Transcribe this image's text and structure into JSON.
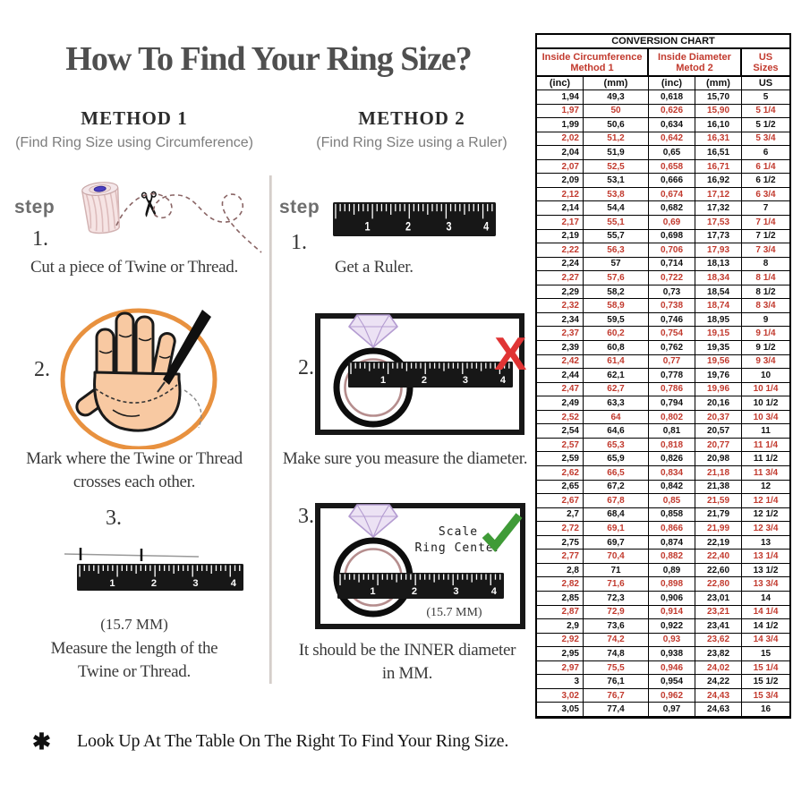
{
  "title": "How To Find Your Ring Size?",
  "footnote": {
    "symbol": "✱",
    "text": "Look Up At The Table On The Right To Find Your Ring Size."
  },
  "rulers": {
    "numbers": [
      "1",
      "2",
      "3",
      "4"
    ]
  },
  "icons": {
    "scissors": "✂"
  },
  "method1": {
    "title": "METHOD 1",
    "subtitle": "(Find Ring Size using Circumference)",
    "step_label": "step",
    "step1_number": "1.",
    "step1_caption": "Cut a piece of  Twine or Thread.",
    "step2_number": "2.",
    "step2_caption_line1": "Mark where the Twine or Thread",
    "step2_caption_line2": "crosses each other.",
    "step3_number": "3.",
    "step3_measurement": "(15.7 MM)",
    "step3_caption_line1": "Measure the length of the",
    "step3_caption_line2": "Twine or Thread."
  },
  "method2": {
    "title": "METHOD 2",
    "subtitle": "(Find Ring Size using a Ruler)",
    "step_label": "step",
    "step1_number": "1.",
    "step1_caption": "Get a Ruler.",
    "step2_number": "2.",
    "step2_caption": "Make sure you measure the diameter.",
    "wrong_mark": "X",
    "step3_number": "3.",
    "scale_line1": "Scale",
    "scale_line2": "Ring Center",
    "step3_measurement": "(15.7 MM)",
    "step3_caption_line1": "It should be the INNER diameter",
    "step3_caption_line2": "in MM."
  },
  "conversion_chart": {
    "title": "CONVERSION CHART",
    "group_headers": [
      "Inside Circumference Method 1",
      "Inside Diameter Metod 2",
      "US Sizes"
    ],
    "sub_headers": [
      "(inc)",
      "(mm)",
      "(inc)",
      "(mm)",
      "US"
    ],
    "rows": [
      [
        "1,94",
        "49,3",
        "0,618",
        "15,70",
        "5"
      ],
      [
        "1,97",
        "50",
        "0,626",
        "15,90",
        "5 1/4"
      ],
      [
        "1,99",
        "50,6",
        "0,634",
        "16,10",
        "5 1/2"
      ],
      [
        "2,02",
        "51,2",
        "0,642",
        "16,31",
        "5 3/4"
      ],
      [
        "2,04",
        "51,9",
        "0,65",
        "16,51",
        "6"
      ],
      [
        "2,07",
        "52,5",
        "0,658",
        "16,71",
        "6 1/4"
      ],
      [
        "2,09",
        "53,1",
        "0,666",
        "16,92",
        "6 1/2"
      ],
      [
        "2,12",
        "53,8",
        "0,674",
        "17,12",
        "6 3/4"
      ],
      [
        "2,14",
        "54,4",
        "0,682",
        "17,32",
        "7"
      ],
      [
        "2,17",
        "55,1",
        "0,69",
        "17,53",
        "7 1/4"
      ],
      [
        "2,19",
        "55,7",
        "0,698",
        "17,73",
        "7 1/2"
      ],
      [
        "2,22",
        "56,3",
        "0,706",
        "17,93",
        "7 3/4"
      ],
      [
        "2,24",
        "57",
        "0,714",
        "18,13",
        "8"
      ],
      [
        "2,27",
        "57,6",
        "0,722",
        "18,34",
        "8 1/4"
      ],
      [
        "2,29",
        "58,2",
        "0,73",
        "18,54",
        "8 1/2"
      ],
      [
        "2,32",
        "58,9",
        "0,738",
        "18,74",
        "8 3/4"
      ],
      [
        "2,34",
        "59,5",
        "0,746",
        "18,95",
        "9"
      ],
      [
        "2,37",
        "60,2",
        "0,754",
        "19,15",
        "9 1/4"
      ],
      [
        "2,39",
        "60,8",
        "0,762",
        "19,35",
        "9 1/2"
      ],
      [
        "2,42",
        "61,4",
        "0,77",
        "19,56",
        "9 3/4"
      ],
      [
        "2,44",
        "62,1",
        "0,778",
        "19,76",
        "10"
      ],
      [
        "2,47",
        "62,7",
        "0,786",
        "19,96",
        "10 1/4"
      ],
      [
        "2,49",
        "63,3",
        "0,794",
        "20,16",
        "10 1/2"
      ],
      [
        "2,52",
        "64",
        "0,802",
        "20,37",
        "10 3/4"
      ],
      [
        "2,54",
        "64,6",
        "0,81",
        "20,57",
        "11"
      ],
      [
        "2,57",
        "65,3",
        "0,818",
        "20,77",
        "11 1/4"
      ],
      [
        "2,59",
        "65,9",
        "0,826",
        "20,98",
        "11 1/2"
      ],
      [
        "2,62",
        "66,5",
        "0,834",
        "21,18",
        "11 3/4"
      ],
      [
        "2,65",
        "67,2",
        "0,842",
        "21,38",
        "12"
      ],
      [
        "2,67",
        "67,8",
        "0,85",
        "21,59",
        "12 1/4"
      ],
      [
        "2,7",
        "68,4",
        "0,858",
        "21,79",
        "12 1/2"
      ],
      [
        "2,72",
        "69,1",
        "0,866",
        "21,99",
        "12 3/4"
      ],
      [
        "2,75",
        "69,7",
        "0,874",
        "22,19",
        "13"
      ],
      [
        "2,77",
        "70,4",
        "0,882",
        "22,40",
        "13 1/4"
      ],
      [
        "2,8",
        "71",
        "0,89",
        "22,60",
        "13 1/2"
      ],
      [
        "2,82",
        "71,6",
        "0,898",
        "22,80",
        "13 3/4"
      ],
      [
        "2,85",
        "72,3",
        "0,906",
        "23,01",
        "14"
      ],
      [
        "2,87",
        "72,9",
        "0,914",
        "23,21",
        "14 1/4"
      ],
      [
        "2,9",
        "73,6",
        "0,922",
        "23,41",
        "14 1/2"
      ],
      [
        "2,92",
        "74,2",
        "0,93",
        "23,62",
        "14 3/4"
      ],
      [
        "2,95",
        "74,8",
        "0,938",
        "23,82",
        "15"
      ],
      [
        "2,97",
        "75,5",
        "0,946",
        "24,02",
        "15 1/4"
      ],
      [
        "3",
        "76,1",
        "0,954",
        "24,22",
        "15 1/2"
      ],
      [
        "3,02",
        "76,7",
        "0,962",
        "24,43",
        "15 3/4"
      ],
      [
        "3,05",
        "77,4",
        "0,97",
        "24,63",
        "16"
      ]
    ]
  },
  "colors": {
    "table_red": "#c23a2e",
    "wrong_red": "#e03434",
    "check_green": "#3f9b37",
    "circle_orange": "#e8913f",
    "skin": "#f8c9a2",
    "ring_inner": "#b58d8d",
    "diamond_purple": "#cbb3dd"
  }
}
